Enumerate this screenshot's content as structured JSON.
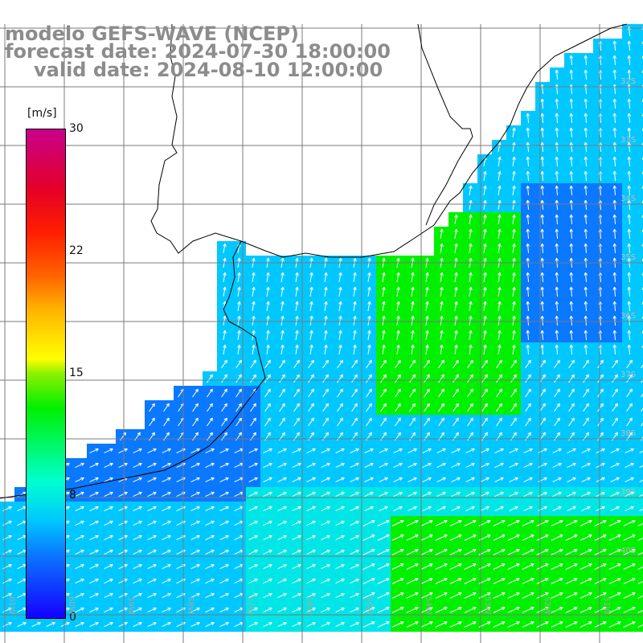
{
  "title": {
    "line1": "modelo GEFS-WAVE (NCEP)",
    "line2": "forecast date: 2024-07-30 18:00:00",
    "line3": "valid date: 2024-08-10 12:00:00"
  },
  "colorbar": {
    "unit": "[m/s]",
    "min": 0,
    "max": 30,
    "ticks": [
      "30",
      "22",
      "15",
      "8",
      "0"
    ],
    "tick_values": [
      30,
      22,
      15,
      8,
      0
    ],
    "colors": [
      "#1400ff",
      "#0a78ff",
      "#00c8ff",
      "#00ffd0",
      "#00f000",
      "#8cf000",
      "#ffff00",
      "#ffb400",
      "#ff6400",
      "#ff1e00",
      "#e40028",
      "#c8008c"
    ]
  },
  "longitude_labels": [
    "61W",
    "60W",
    "59W",
    "58W",
    "57W",
    "56W",
    "55W",
    "54W",
    "53W",
    "52W",
    "51W"
  ],
  "latitude_labels": [
    "32S",
    "33S",
    "34S",
    "35S",
    "36S",
    "37S",
    "38S",
    "39S",
    "40S"
  ],
  "field_colors": {
    "land": "#ffffff",
    "weak": "#00c8ff",
    "moderate": "#00e6e6",
    "strong": "#00f000",
    "low": "#0a78ff",
    "arrow": "#ffffff",
    "grid": "#7a7a7a",
    "coast": "#000000"
  }
}
